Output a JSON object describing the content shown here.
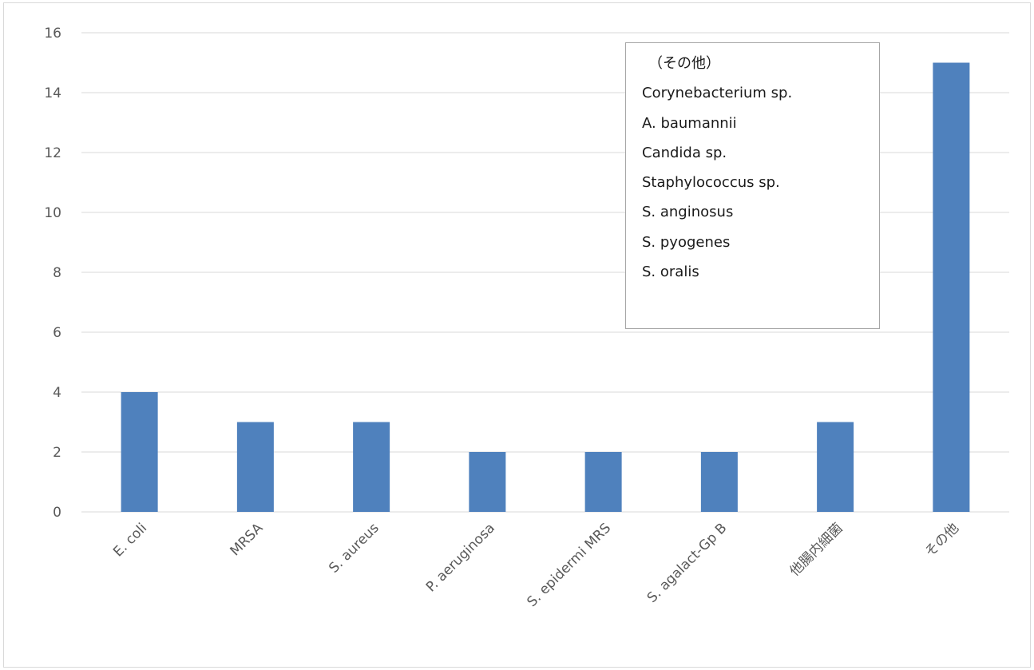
{
  "chart_data": {
    "type": "bar",
    "categories": [
      "E. coli",
      "MRSA",
      "S. aureus",
      "P. aeruginosa",
      "S. epidermi MRS",
      "S. agalact-Gp B",
      "他腸内細菌",
      "その他"
    ],
    "values": [
      4,
      3,
      3,
      2,
      2,
      2,
      3,
      15
    ],
    "ylim": [
      0,
      16
    ],
    "yticks": [
      0,
      2,
      4,
      6,
      8,
      10,
      12,
      14,
      16
    ],
    "grid": true,
    "bar_color": "#4f81bd",
    "grid_color": "#d9d9d9",
    "axis_color": "#d9d9d9"
  },
  "annotation": {
    "heading": "（その他）",
    "items": [
      "Corynebacterium sp.",
      "A. baumannii",
      "Candida sp.",
      "Staphylococcus sp.",
      "S. anginosus",
      "S. pyogenes",
      "S. oralis"
    ]
  }
}
